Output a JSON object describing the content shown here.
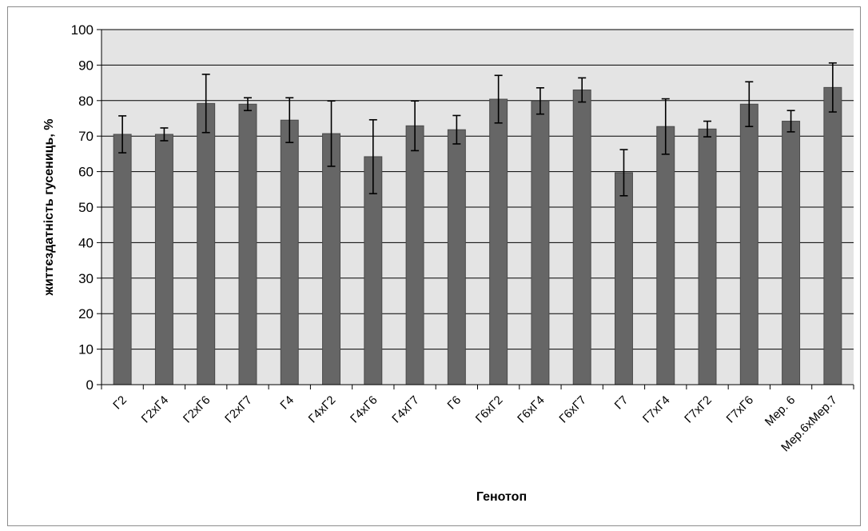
{
  "chart_data": {
    "type": "bar",
    "title": "",
    "xlabel": "Генотоп",
    "ylabel": "життєздатність гусениць, %",
    "ylim": [
      0,
      100
    ],
    "yticks": [
      0,
      10,
      20,
      30,
      40,
      50,
      60,
      70,
      80,
      90,
      100
    ],
    "grid": true,
    "categories": [
      "Г2",
      "Г2хГ4",
      "Г2хГ6",
      "Г2хГ7",
      "Г4",
      "Г4хГ2",
      "Г4хГ6",
      "Г4хГ7",
      "Г6",
      "Г6хГ2",
      "Г6хГ4",
      "Г6хГ7",
      "Г7",
      "Г7хГ4",
      "Г7хГ2",
      "Г7хГ6",
      "Мер. 6",
      "Мер.6хМер.7"
    ],
    "values": [
      70.5,
      70.5,
      79.2,
      79.0,
      74.5,
      70.7,
      64.2,
      72.9,
      71.8,
      80.4,
      79.9,
      83.0,
      59.7,
      72.7,
      72.0,
      79.0,
      74.2,
      83.7
    ],
    "errors": [
      5.2,
      1.8,
      8.2,
      1.8,
      6.3,
      9.2,
      10.4,
      7.0,
      4.0,
      6.7,
      3.7,
      3.4,
      6.5,
      7.8,
      2.2,
      6.3,
      3.0,
      6.9
    ],
    "colors": {
      "bar": "#666666",
      "bar_edge": "#4a4a4a",
      "plot_bg": "#e4e4e4",
      "grid": "#000000",
      "error": "#000000"
    }
  }
}
